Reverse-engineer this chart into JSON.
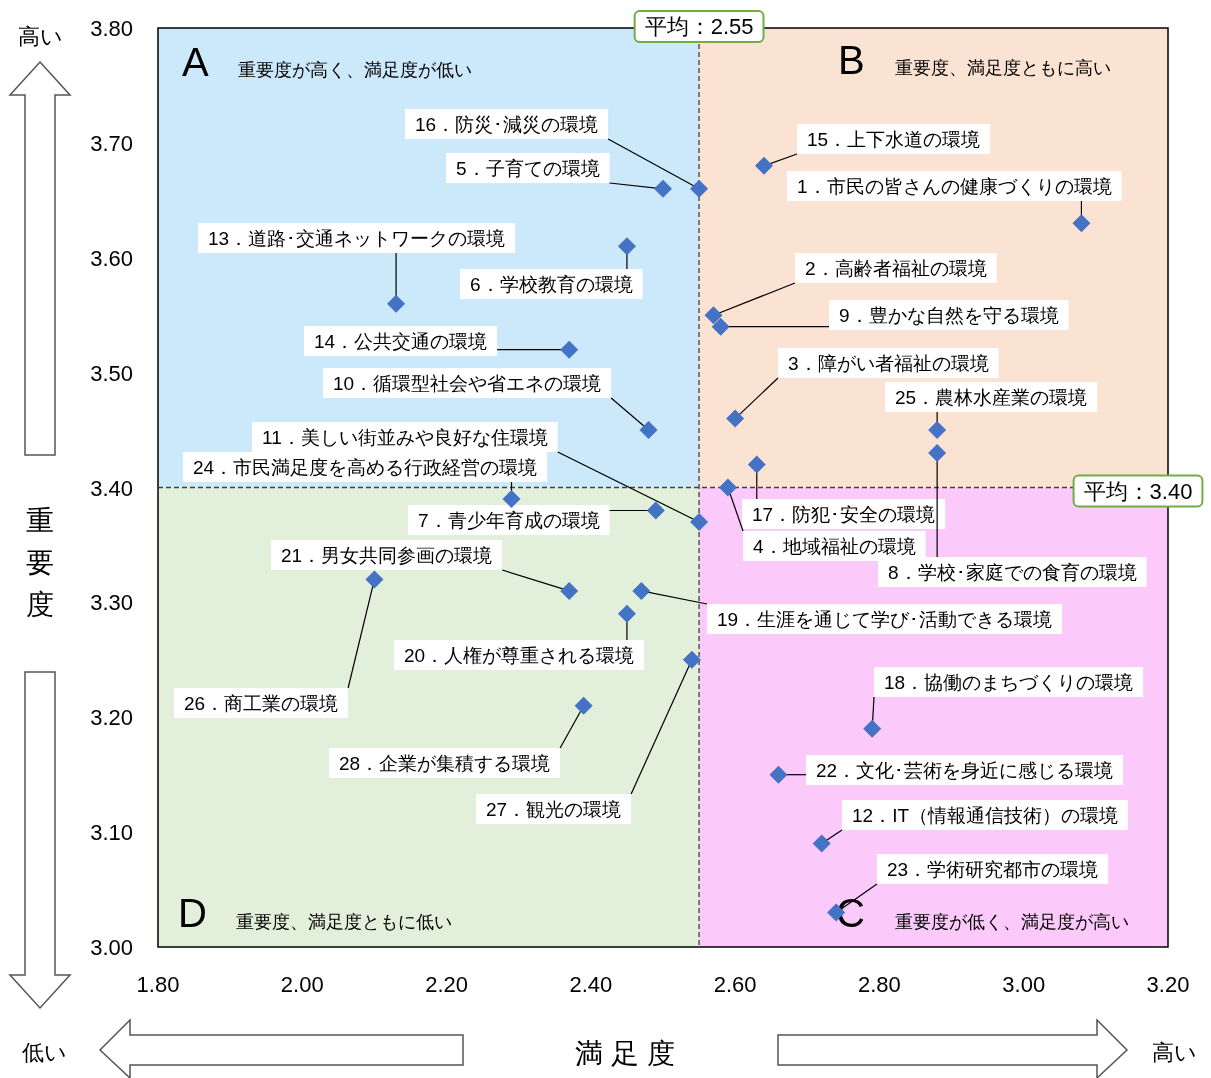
{
  "chart_data": {
    "type": "scatter",
    "xlabel": "満 足 度",
    "ylabel": "重要度",
    "xlim": [
      1.8,
      3.2
    ],
    "ylim": [
      3.0,
      3.8
    ],
    "xticks": [
      {
        "value": 1.8,
        "label": "1.80"
      },
      {
        "value": 2.0,
        "label": "2.00"
      },
      {
        "value": 2.2,
        "label": "2.20"
      },
      {
        "value": 2.4,
        "label": "2.40"
      },
      {
        "value": 2.6,
        "label": "2.60"
      },
      {
        "value": 2.8,
        "label": "2.80"
      },
      {
        "value": 3.0,
        "label": "3.00"
      },
      {
        "value": 3.2,
        "label": "3.20"
      }
    ],
    "yticks": [
      {
        "value": 3.0,
        "label": "3.00"
      },
      {
        "value": 3.1,
        "label": "3.10"
      },
      {
        "value": 3.2,
        "label": "3.20"
      },
      {
        "value": 3.3,
        "label": "3.30"
      },
      {
        "value": 3.4,
        "label": "3.40"
      },
      {
        "value": 3.5,
        "label": "3.50"
      },
      {
        "value": 3.6,
        "label": "3.60"
      },
      {
        "value": 3.7,
        "label": "3.70"
      },
      {
        "value": 3.8,
        "label": "3.80"
      }
    ],
    "marker": "diamond",
    "series": [
      {
        "color": "#4472c4",
        "x": [
          3.08,
          2.57,
          2.6,
          2.59,
          2.5,
          2.45,
          2.49,
          2.88,
          2.58,
          2.48,
          2.55,
          2.72,
          2.13,
          2.37,
          2.64,
          2.55,
          2.63,
          2.79,
          2.47,
          2.45,
          2.37,
          2.66,
          2.74,
          2.29,
          2.88,
          2.1,
          2.54,
          2.39
        ],
        "values": [
          3.63,
          3.55,
          3.46,
          3.4,
          3.66,
          3.61,
          3.38,
          3.43,
          3.54,
          3.45,
          3.37,
          3.09,
          3.56,
          3.52,
          3.68,
          3.66,
          3.42,
          3.19,
          3.31,
          3.29,
          3.31,
          3.15,
          3.03,
          3.39,
          3.45,
          3.32,
          3.25,
          3.21
        ]
      }
    ],
    "ref_lines": [
      {
        "axis": "x",
        "value": 2.55,
        "label": "平均：2.55",
        "color": "#404040",
        "line_style": "dashed"
      },
      {
        "axis": "y",
        "value": 3.4,
        "label": "平均：3.40",
        "color": "#404040",
        "line_style": "dashed"
      }
    ],
    "annotations": [
      {
        "text": "1．市民の皆さんの健康づくりの環境",
        "x": 3.08,
        "y": 3.63
      },
      {
        "text": "2．高齢者福祉の環境",
        "x": 2.57,
        "y": 3.55
      },
      {
        "text": "3．障がい者福祉の環境",
        "x": 2.6,
        "y": 3.46
      },
      {
        "text": "4．地域福祉の環境",
        "x": 2.59,
        "y": 3.4
      },
      {
        "text": "5．子育ての環境",
        "x": 2.5,
        "y": 3.66
      },
      {
        "text": "6．学校教育の環境",
        "x": 2.45,
        "y": 3.61
      },
      {
        "text": "7．青少年育成の環境",
        "x": 2.49,
        "y": 3.38
      },
      {
        "text": "8．学校･家庭での食育の環境",
        "x": 2.88,
        "y": 3.43
      },
      {
        "text": "9．豊かな自然を守る環境",
        "x": 2.58,
        "y": 3.54
      },
      {
        "text": "10．循環型社会や省エネの環境",
        "x": 2.48,
        "y": 3.45
      },
      {
        "text": "11．美しい街並みや良好な住環境",
        "x": 2.55,
        "y": 3.37
      },
      {
        "text": "12．IT（情報通信技術）の環境",
        "x": 2.72,
        "y": 3.09
      },
      {
        "text": "13．道路･交通ネットワークの環境",
        "x": 2.13,
        "y": 3.56
      },
      {
        "text": "14．公共交通の環境",
        "x": 2.37,
        "y": 3.52
      },
      {
        "text": "15．上下水道の環境",
        "x": 2.64,
        "y": 3.68
      },
      {
        "text": "16．防災･減災の環境",
        "x": 2.55,
        "y": 3.66
      },
      {
        "text": "17．防犯･安全の環境",
        "x": 2.63,
        "y": 3.42
      },
      {
        "text": "18．協働のまちづくりの環境",
        "x": 2.79,
        "y": 3.19
      },
      {
        "text": "19．生涯を通じて学び･活動できる環境",
        "x": 2.47,
        "y": 3.31
      },
      {
        "text": "20．人権が尊重される環境",
        "x": 2.45,
        "y": 3.29
      },
      {
        "text": "21．男女共同参画の環境",
        "x": 2.37,
        "y": 3.31
      },
      {
        "text": "22．文化･芸術を身近に感じる環境",
        "x": 2.66,
        "y": 3.15
      },
      {
        "text": "23．学術研究都市の環境",
        "x": 2.74,
        "y": 3.03
      },
      {
        "text": "24．市民満足度を高める行政経営の環境",
        "x": 2.29,
        "y": 3.39
      },
      {
        "text": "25．農林水産業の環境",
        "x": 2.88,
        "y": 3.45
      },
      {
        "text": "26．商工業の環境",
        "x": 2.1,
        "y": 3.32
      },
      {
        "text": "27．観光の環境",
        "x": 2.54,
        "y": 3.25
      },
      {
        "text": "28．企業が集積する環境",
        "x": 2.39,
        "y": 3.21
      },
      "A",
      "B",
      "C",
      "D",
      "重要度が高く、満足度が低い",
      "重要度、満足度ともに高い",
      "重要度が低く、満足度が高い",
      "重要度、満足度ともに低い",
      "高い",
      "低い",
      "高い"
    ]
  }
}
